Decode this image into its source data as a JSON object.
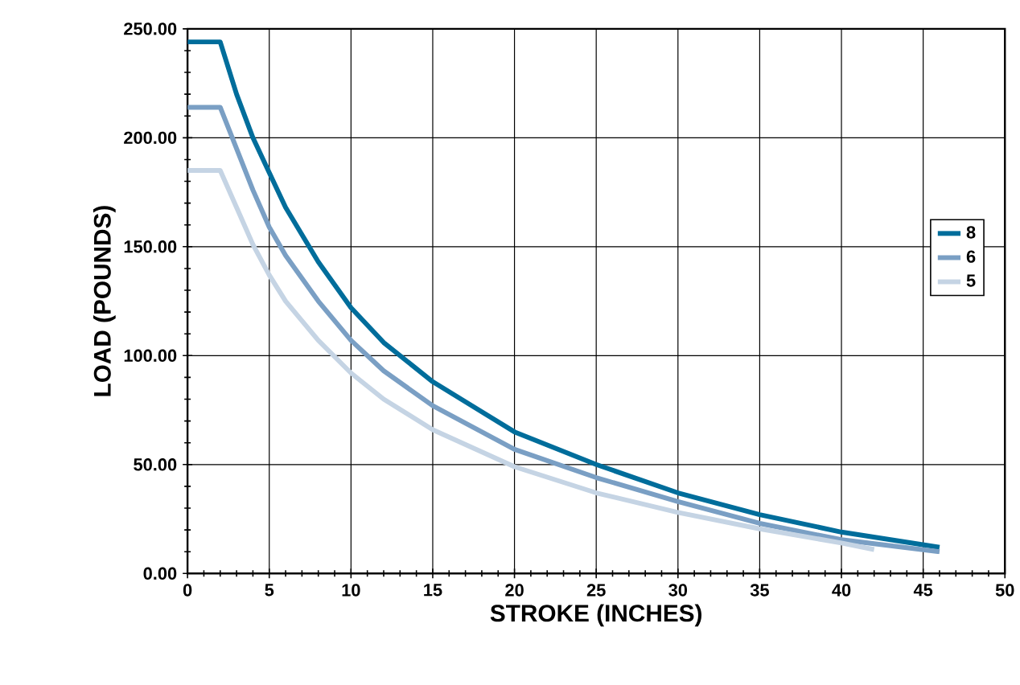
{
  "chart_data": {
    "type": "line",
    "xlabel": "STROKE (INCHES)",
    "ylabel": "LOAD (POUNDS)",
    "series": [
      {
        "name": "8",
        "color": "#006d9b",
        "x": [
          0,
          2,
          3,
          4,
          5,
          6,
          8,
          10,
          12,
          15,
          20,
          25,
          30,
          35,
          40,
          46
        ],
        "values": [
          244,
          244,
          220,
          200,
          184,
          168,
          143,
          122,
          106,
          88,
          65,
          50,
          37,
          27,
          19,
          12
        ]
      },
      {
        "name": "6",
        "color": "#7a9fc4",
        "x": [
          0,
          2,
          3,
          4,
          5,
          6,
          8,
          10,
          12,
          15,
          20,
          25,
          30,
          35,
          40,
          46
        ],
        "values": [
          214,
          214,
          195,
          176,
          159,
          146,
          125,
          107,
          93,
          77,
          57,
          44,
          33,
          23,
          15.5,
          10
        ]
      },
      {
        "name": "5",
        "color": "#c5d4e4",
        "x": [
          0,
          2,
          3,
          4,
          5,
          6,
          8,
          10,
          12,
          15,
          20,
          25,
          30,
          35,
          40,
          42
        ],
        "values": [
          185,
          185,
          168,
          151,
          137,
          125,
          107,
          92,
          80,
          66,
          49,
          37,
          28,
          20.5,
          14,
          11
        ]
      }
    ],
    "xlim": [
      0,
      50
    ],
    "xticks": [
      0,
      5,
      10,
      15,
      20,
      25,
      30,
      35,
      40,
      45,
      50
    ],
    "ylim": [
      0,
      250
    ],
    "yticks": [
      {
        "value": 0,
        "label": "0.00"
      },
      {
        "value": 50,
        "label": "50.00"
      },
      {
        "value": 100,
        "label": "100.00"
      },
      {
        "value": 150,
        "label": "150.00"
      },
      {
        "value": 200,
        "label": "200.00"
      },
      {
        "value": 250,
        "label": "250.00"
      }
    ],
    "grid": true,
    "legend": "right",
    "marker": "none",
    "line_style": "solid"
  }
}
